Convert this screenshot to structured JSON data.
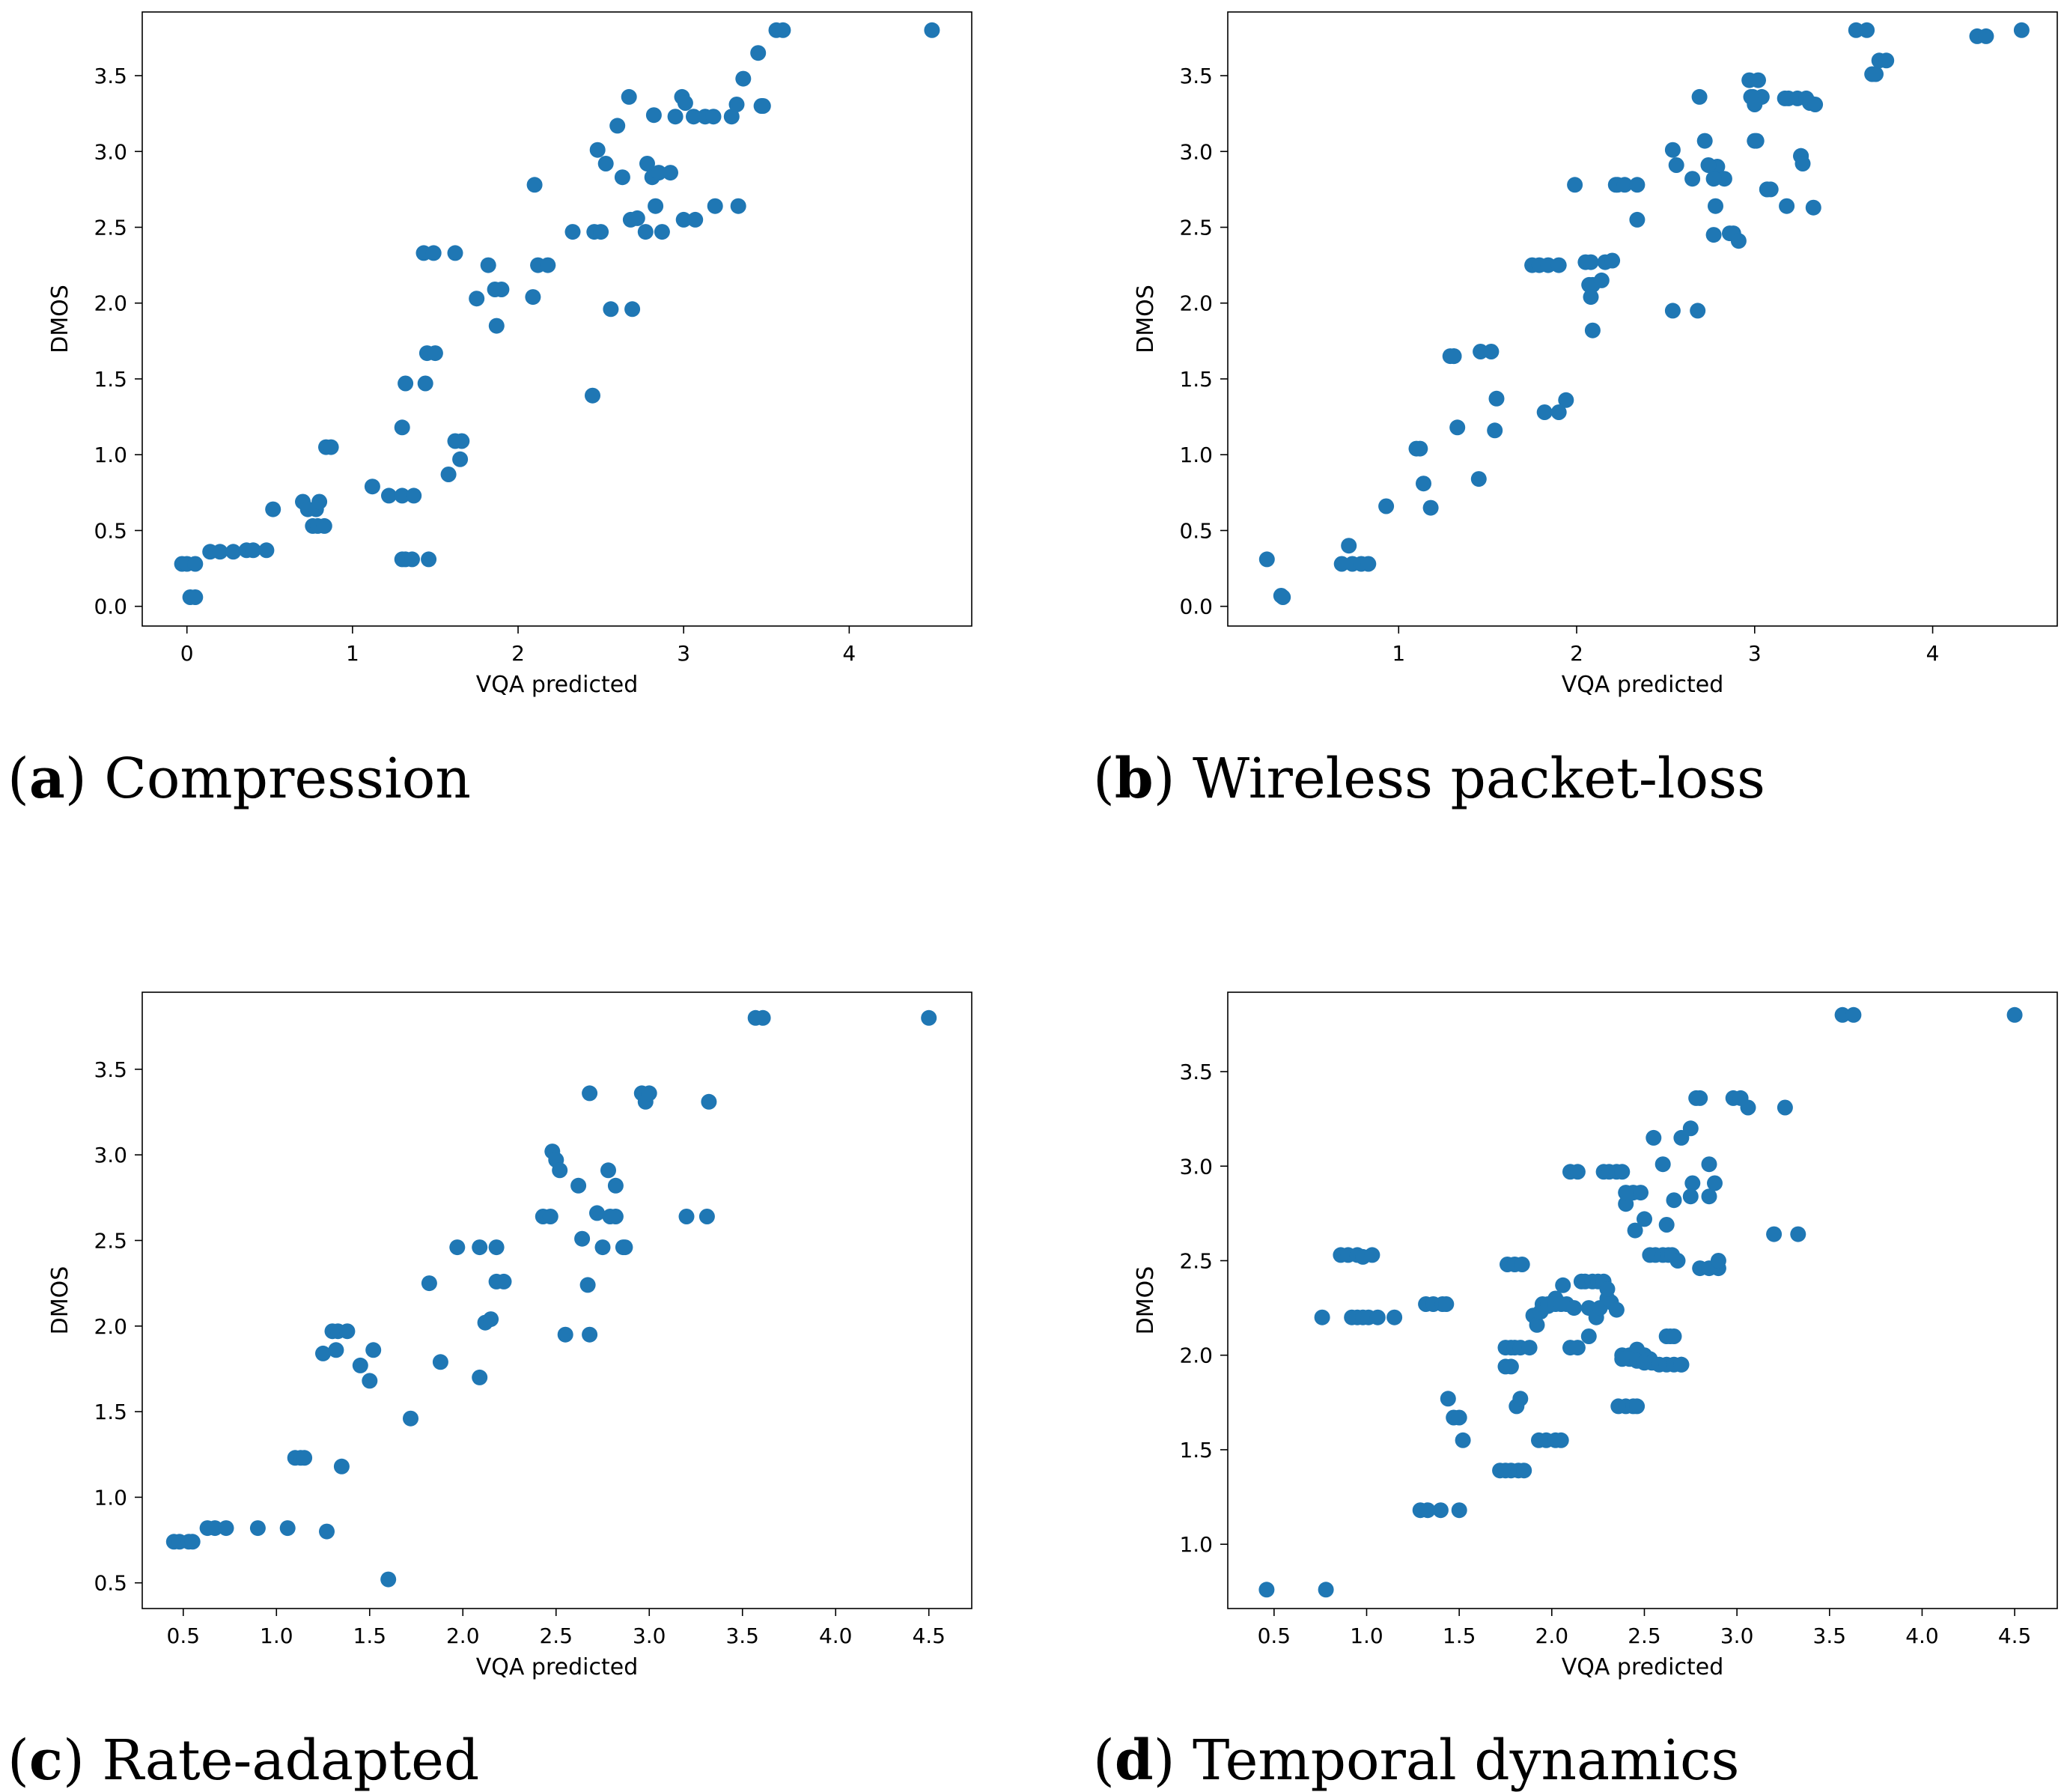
{
  "colors": {
    "marker": "#1f77b4"
  },
  "chart_data": [
    {
      "type": "scatter",
      "panel_letter": "a",
      "caption": "Compression",
      "xlabel": "VQA predicted",
      "ylabel": "DMOS",
      "xlim": [
        -0.27,
        4.74
      ],
      "ylim": [
        -0.13,
        3.92
      ],
      "xticks": [
        0,
        1,
        2,
        3,
        4
      ],
      "xtick_labels": [
        "0",
        "1",
        "2",
        "3",
        "4"
      ],
      "yticks": [
        0,
        0.5,
        1,
        1.5,
        2,
        2.5,
        3,
        3.5
      ],
      "ytick_labels": [
        "0.0",
        "0.5",
        "1.0",
        "1.5",
        "2.0",
        "2.5",
        "3.0",
        "3.5"
      ],
      "x": [
        -0.03,
        0.0,
        0.05,
        0.02,
        0.05,
        0.14,
        0.2,
        0.28,
        0.36,
        0.4,
        0.48,
        0.52,
        0.7,
        0.73,
        0.78,
        0.8,
        0.76,
        0.79,
        0.83,
        0.84,
        0.87,
        1.12,
        1.22,
        1.3,
        1.37,
        1.3,
        1.32,
        1.36,
        1.46,
        1.3,
        1.32,
        1.44,
        1.45,
        1.5,
        1.43,
        1.49,
        1.62,
        1.58,
        1.62,
        1.66,
        1.65,
        1.75,
        1.82,
        1.86,
        1.9,
        1.87,
        2.12,
        2.18,
        2.09,
        2.1,
        2.33,
        2.46,
        2.48,
        2.5,
        2.53,
        2.6,
        2.63,
        2.67,
        2.68,
        2.72,
        2.77,
        2.78,
        2.81,
        2.83,
        2.85,
        2.87,
        2.92,
        2.95,
        2.99,
        3.01,
        3.06,
        3.13,
        3.18,
        3.29,
        3.32,
        3.36,
        3.45,
        3.47,
        3.48,
        3.56,
        3.6,
        2.45,
        2.56,
        2.69,
        2.82,
        3.0,
        3.07,
        3.19,
        3.33,
        4.5
      ],
      "y": [
        0.28,
        0.28,
        0.28,
        0.06,
        0.06,
        0.36,
        0.36,
        0.36,
        0.37,
        0.37,
        0.37,
        0.64,
        0.69,
        0.64,
        0.64,
        0.69,
        0.53,
        0.53,
        0.53,
        1.05,
        1.05,
        0.79,
        0.73,
        0.73,
        0.73,
        0.31,
        0.31,
        0.31,
        0.31,
        1.18,
        1.47,
        1.47,
        1.67,
        1.67,
        2.33,
        2.33,
        2.33,
        0.87,
        1.09,
        1.09,
        0.97,
        2.03,
        2.25,
        2.09,
        2.09,
        1.85,
        2.25,
        2.25,
        2.04,
        2.78,
        2.47,
        2.47,
        3.01,
        2.47,
        2.92,
        3.17,
        2.83,
        3.36,
        2.55,
        2.56,
        2.47,
        2.92,
        2.83,
        2.64,
        2.86,
        2.47,
        2.86,
        3.23,
        3.36,
        3.32,
        3.23,
        3.23,
        3.23,
        3.23,
        3.31,
        3.48,
        3.65,
        3.3,
        3.3,
        3.8,
        3.8,
        1.39,
        1.96,
        1.96,
        3.24,
        2.55,
        2.55,
        2.64,
        2.64,
        3.8
      ]
    },
    {
      "type": "scatter",
      "panel_letter": "b",
      "caption": "Wireless packet-loss",
      "xlabel": "VQA predicted",
      "ylabel": "DMOS",
      "xlim": [
        0.04,
        4.7
      ],
      "ylim": [
        -0.13,
        3.92
      ],
      "xticks": [
        1,
        2,
        3,
        4
      ],
      "xtick_labels": [
        "1",
        "2",
        "3",
        "4"
      ],
      "yticks": [
        0,
        0.5,
        1,
        1.5,
        2,
        2.5,
        3,
        3.5
      ],
      "ytick_labels": [
        "0.0",
        "0.5",
        "1.0",
        "1.5",
        "2.0",
        "2.5",
        "3.0",
        "3.5"
      ],
      "x": [
        0.26,
        0.34,
        0.35,
        0.72,
        0.68,
        0.74,
        0.79,
        0.83,
        0.93,
        1.1,
        1.12,
        1.14,
        1.18,
        1.29,
        1.31,
        1.33,
        1.46,
        1.52,
        1.55,
        1.45,
        1.31,
        1.54,
        1.82,
        1.9,
        1.94,
        1.75,
        1.79,
        1.84,
        1.9,
        1.99,
        2.05,
        2.08,
        2.07,
        2.09,
        2.16,
        2.2,
        2.23,
        2.22,
        2.27,
        2.34,
        2.34,
        2.54,
        2.56,
        2.65,
        2.69,
        2.72,
        2.77,
        2.79,
        2.83,
        2.86,
        2.88,
        2.91,
        2.97,
        2.99,
        2.99,
        3.0,
        3.01,
        3.02,
        3.04,
        3.07,
        3.07,
        3.09,
        3.17,
        3.19,
        3.24,
        3.29,
        3.31,
        3.34,
        3.33,
        3.26,
        3.26,
        3.27,
        3.18,
        2.54,
        2.68,
        2.09,
        2.14,
        2.08,
        3.57,
        3.63,
        3.66,
        3.68,
        3.7,
        3.74,
        4.25,
        4.3,
        4.5,
        2.78,
        2.98,
        3.0,
        2.77,
        2.74
      ],
      "y": [
        0.31,
        0.07,
        0.06,
        0.4,
        0.28,
        0.28,
        0.28,
        0.28,
        0.66,
        1.04,
        1.04,
        0.81,
        0.65,
        1.65,
        1.65,
        1.18,
        1.68,
        1.68,
        1.37,
        0.84,
        1.65,
        1.16,
        1.28,
        1.28,
        1.36,
        2.25,
        2.25,
        2.25,
        2.25,
        2.78,
        2.27,
        2.27,
        2.12,
        2.12,
        2.27,
        2.28,
        2.78,
        2.78,
        2.78,
        2.55,
        2.78,
        3.01,
        2.91,
        2.82,
        3.36,
        3.07,
        2.45,
        2.9,
        2.82,
        2.46,
        2.46,
        2.41,
        3.47,
        3.36,
        3.35,
        3.07,
        3.07,
        3.47,
        3.36,
        2.75,
        2.75,
        2.75,
        3.35,
        3.35,
        3.35,
        3.35,
        3.32,
        3.31,
        2.63,
        2.97,
        2.97,
        2.92,
        2.64,
        1.95,
        1.95,
        1.82,
        2.15,
        2.04,
        3.8,
        3.8,
        3.51,
        3.51,
        3.6,
        3.6,
        3.76,
        3.76,
        3.8,
        2.64,
        3.36,
        3.31,
        2.82,
        2.91
      ]
    },
    {
      "type": "scatter",
      "panel_letter": "c",
      "caption": "Rate-adapted",
      "xlabel": "VQA predicted",
      "ylabel": "DMOS",
      "xlim": [
        0.28,
        4.73
      ],
      "ylim": [
        0.35,
        3.95
      ],
      "xticks": [
        0.5,
        1.0,
        1.5,
        2.0,
        2.5,
        3.0,
        3.5,
        4.0,
        4.5
      ],
      "xtick_labels": [
        "0.5",
        "1.0",
        "1.5",
        "2.0",
        "2.5",
        "3.0",
        "3.5",
        "4.0",
        "4.5"
      ],
      "yticks": [
        0.5,
        1.0,
        1.5,
        2.0,
        2.5,
        3.0,
        3.5
      ],
      "ytick_labels": [
        "0.5",
        "1.0",
        "1.5",
        "2.0",
        "2.5",
        "3.0",
        "3.5"
      ],
      "x": [
        0.45,
        0.48,
        0.53,
        0.55,
        0.63,
        0.67,
        0.73,
        0.9,
        1.06,
        1.1,
        1.13,
        1.15,
        1.27,
        1.3,
        1.33,
        1.25,
        1.32,
        1.35,
        1.38,
        1.45,
        1.5,
        1.52,
        1.6,
        1.72,
        1.82,
        1.88,
        1.97,
        2.09,
        2.09,
        2.12,
        2.15,
        2.18,
        2.18,
        2.22,
        2.43,
        2.48,
        2.47,
        2.5,
        2.52,
        2.62,
        2.64,
        2.67,
        2.68,
        2.72,
        2.75,
        2.78,
        2.82,
        2.86,
        2.87,
        2.68,
        2.55,
        2.96,
        2.98,
        3.0,
        3.2,
        3.31,
        3.32,
        3.57,
        3.61,
        4.5,
        2.82,
        2.79
      ],
      "y": [
        0.74,
        0.74,
        0.74,
        0.74,
        0.82,
        0.82,
        0.82,
        0.82,
        0.82,
        1.23,
        1.23,
        1.23,
        0.8,
        1.97,
        1.97,
        1.84,
        1.86,
        1.18,
        1.97,
        1.77,
        1.68,
        1.86,
        0.52,
        1.46,
        2.25,
        1.79,
        2.46,
        2.46,
        1.7,
        2.02,
        2.04,
        2.46,
        2.26,
        2.26,
        2.64,
        3.02,
        2.64,
        2.97,
        2.91,
        2.82,
        2.51,
        2.24,
        3.36,
        2.66,
        2.46,
        2.91,
        2.82,
        2.46,
        2.46,
        1.95,
        1.95,
        3.36,
        3.31,
        3.36,
        2.64,
        2.64,
        3.31,
        3.8,
        3.8,
        3.8,
        2.64,
        2.64
      ]
    },
    {
      "type": "scatter",
      "panel_letter": "d",
      "caption": "Temporal dynamics",
      "xlabel": "VQA predicted",
      "ylabel": "DMOS",
      "xlim": [
        0.25,
        4.73
      ],
      "ylim": [
        0.66,
        3.92
      ],
      "xticks": [
        0.5,
        1.0,
        1.5,
        2.0,
        2.5,
        3.0,
        3.5,
        4.0,
        4.5
      ],
      "xtick_labels": [
        "0.5",
        "1.0",
        "1.5",
        "2.0",
        "2.5",
        "3.0",
        "3.5",
        "4.0",
        "4.5"
      ],
      "yticks": [
        1.0,
        1.5,
        2.0,
        2.5,
        3.0,
        3.5
      ],
      "ytick_labels": [
        "1.0",
        "1.5",
        "2.0",
        "2.5",
        "3.0",
        "3.5"
      ],
      "x": [
        0.46,
        0.78,
        0.76,
        0.86,
        0.9,
        0.95,
        0.98,
        1.03,
        0.92,
        0.95,
        0.98,
        1.01,
        1.06,
        1.15,
        1.32,
        1.36,
        1.41,
        1.43,
        1.44,
        1.47,
        1.5,
        1.52,
        1.29,
        1.33,
        1.4,
        1.5,
        1.72,
        1.75,
        1.78,
        1.82,
        1.85,
        1.76,
        1.8,
        1.84,
        1.75,
        1.78,
        1.8,
        1.83,
        1.88,
        1.75,
        1.78,
        1.81,
        1.83,
        1.9,
        1.92,
        1.94,
        1.98,
        2.02,
        2.06,
        2.1,
        2.14,
        1.93,
        1.97,
        2.02,
        2.05,
        2.1,
        2.14,
        1.95,
        1.98,
        2.02,
        2.05,
        2.08,
        2.12,
        2.16,
        2.18,
        2.22,
        2.25,
        2.28,
        2.2,
        2.24,
        2.28,
        2.31,
        2.35,
        2.38,
        2.4,
        2.44,
        2.48,
        2.5,
        2.53,
        2.56,
        2.6,
        2.63,
        2.65,
        2.68,
        2.38,
        2.42,
        2.46,
        2.5,
        2.53,
        2.38,
        2.42,
        2.46,
        2.5,
        2.54,
        2.58,
        2.62,
        2.66,
        2.7,
        2.36,
        2.4,
        2.44,
        2.46,
        2.62,
        2.64,
        2.66,
        2.62,
        2.66,
        2.7,
        2.75,
        2.78,
        2.8,
        2.85,
        2.88,
        2.76,
        2.8,
        2.85,
        2.9,
        2.98,
        3.02,
        3.06,
        3.2,
        3.26,
        3.33,
        3.57,
        3.63,
        4.5,
        2.32,
        2.35,
        2.2,
        2.26,
        2.3,
        2.45,
        2.6,
        2.55,
        2.4,
        2.7,
        2.75,
        2.85,
        2.9,
        2.3
      ],
      "y": [
        0.76,
        0.76,
        2.2,
        2.53,
        2.53,
        2.53,
        2.52,
        2.53,
        2.2,
        2.2,
        2.2,
        2.2,
        2.2,
        2.2,
        2.27,
        2.27,
        2.27,
        2.27,
        1.77,
        1.67,
        1.67,
        1.55,
        1.18,
        1.18,
        1.18,
        1.18,
        1.39,
        1.39,
        1.39,
        1.39,
        1.39,
        2.48,
        2.48,
        2.48,
        2.04,
        2.04,
        2.04,
        2.04,
        2.04,
        1.94,
        1.94,
        1.73,
        1.77,
        2.21,
        2.16,
        2.23,
        2.26,
        2.3,
        2.37,
        2.97,
        2.97,
        1.55,
        1.55,
        1.55,
        1.55,
        2.04,
        2.04,
        2.27,
        2.27,
        2.27,
        2.27,
        2.27,
        2.25,
        2.39,
        2.39,
        2.39,
        2.39,
        2.39,
        2.25,
        2.2,
        2.97,
        2.97,
        2.97,
        2.97,
        2.8,
        2.86,
        2.86,
        2.72,
        2.53,
        2.53,
        2.53,
        2.53,
        2.53,
        2.5,
        2.0,
        2.0,
        2.03,
        2.0,
        1.98,
        1.98,
        1.98,
        1.97,
        1.96,
        1.96,
        1.95,
        1.95,
        1.95,
        1.95,
        1.73,
        1.73,
        1.73,
        1.73,
        2.1,
        2.1,
        2.1,
        2.69,
        2.82,
        3.15,
        3.2,
        3.36,
        3.36,
        3.01,
        2.91,
        2.91,
        2.46,
        2.46,
        2.46,
        3.36,
        3.36,
        3.31,
        2.64,
        3.31,
        2.64,
        3.8,
        3.8,
        3.8,
        2.28,
        2.24,
        2.1,
        2.25,
        2.3,
        2.66,
        3.01,
        3.15,
        2.86,
        1.95,
        2.84,
        2.84,
        2.5,
        2.35
      ]
    }
  ]
}
